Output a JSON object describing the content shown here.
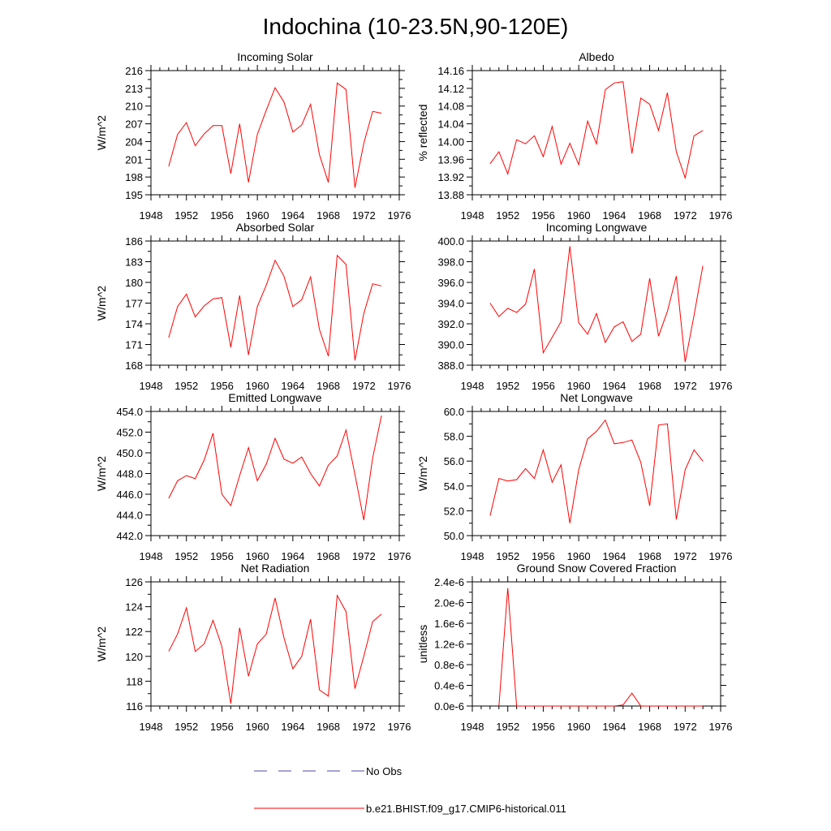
{
  "figure": {
    "title": "Indochina (10-23.5N,90-120E)"
  },
  "colors": {
    "model": "#ff0000",
    "obs": "#4a4aa8",
    "axis": "#000000"
  },
  "legend": {
    "items": [
      {
        "label": "No Obs",
        "style": "dashed",
        "color": "#4a4aa8"
      },
      {
        "label": "b.e21.BHIST.f09_g17.CMIP6-historical.011",
        "style": "solid",
        "color": "#ff0000"
      }
    ]
  },
  "chart_data": [
    {
      "type": "line",
      "title": "Incoming Solar",
      "ylabel": "W/m^2",
      "xlim": [
        1948,
        1976
      ],
      "xticks": [
        "1948",
        "1952",
        "1956",
        "1960",
        "1964",
        "1968",
        "1972",
        "1976"
      ],
      "ylim": [
        195,
        216
      ],
      "yticks": [
        "195",
        "198",
        "201",
        "204",
        "207",
        "210",
        "213",
        "216"
      ],
      "series": [
        {
          "x": [
            1950,
            1951,
            1952,
            1953,
            1954,
            1955,
            1956,
            1957,
            1958,
            1959,
            1960,
            1961,
            1962,
            1963,
            1964,
            1965,
            1966,
            1967,
            1968,
            1969,
            1970,
            1971,
            1972,
            1973,
            1974
          ],
          "values": [
            199.8,
            205.2,
            207.2,
            203.3,
            205.3,
            206.7,
            206.7,
            198.6,
            207.0,
            197.1,
            205.2,
            209.3,
            213.1,
            210.7,
            205.6,
            206.8,
            210.3,
            201.8,
            197.1,
            213.9,
            212.8,
            196.2,
            203.7,
            209.1,
            208.8
          ]
        }
      ]
    },
    {
      "type": "line",
      "title": "Albedo",
      "ylabel": "% reflected",
      "xlim": [
        1948,
        1976
      ],
      "xticks": [
        "1948",
        "1952",
        "1956",
        "1960",
        "1964",
        "1968",
        "1972",
        "1976"
      ],
      "ylim": [
        13.88,
        14.16
      ],
      "yticks": [
        "13.88",
        "13.92",
        "13.96",
        "14.00",
        "14.04",
        "14.08",
        "14.12",
        "14.16"
      ],
      "series": [
        {
          "x": [
            1950,
            1951,
            1952,
            1953,
            1954,
            1955,
            1956,
            1957,
            1958,
            1959,
            1960,
            1961,
            1962,
            1963,
            1964,
            1965,
            1966,
            1967,
            1968,
            1969,
            1970,
            1971,
            1972,
            1973,
            1974
          ],
          "values": [
            13.95,
            13.977,
            13.927,
            14.004,
            13.995,
            14.013,
            13.966,
            14.034,
            13.949,
            13.996,
            13.948,
            14.046,
            13.995,
            14.117,
            14.132,
            14.135,
            13.973,
            14.098,
            14.084,
            14.025,
            14.11,
            13.977,
            13.918,
            14.013,
            14.025
          ]
        }
      ]
    },
    {
      "type": "line",
      "title": "Absorbed Solar",
      "ylabel": "W/m^2",
      "xlim": [
        1948,
        1976
      ],
      "xticks": [
        "1948",
        "1952",
        "1956",
        "1960",
        "1964",
        "1968",
        "1972",
        "1976"
      ],
      "ylim": [
        168,
        186
      ],
      "yticks": [
        "168",
        "171",
        "174",
        "177",
        "180",
        "183",
        "186"
      ],
      "series": [
        {
          "x": [
            1950,
            1951,
            1952,
            1953,
            1954,
            1955,
            1956,
            1957,
            1958,
            1959,
            1960,
            1961,
            1962,
            1963,
            1964,
            1965,
            1966,
            1967,
            1968,
            1969,
            1970,
            1971,
            1972,
            1973,
            1974
          ],
          "values": [
            172.0,
            176.5,
            178.3,
            175.0,
            176.6,
            177.6,
            177.8,
            170.6,
            178.1,
            169.5,
            176.5,
            179.6,
            183.2,
            180.9,
            176.5,
            177.5,
            180.8,
            173.2,
            169.3,
            183.9,
            182.6,
            168.7,
            175.5,
            179.8,
            179.5
          ]
        }
      ]
    },
    {
      "type": "line",
      "title": "Incoming Longwave",
      "ylabel": "",
      "xlim": [
        1948,
        1976
      ],
      "xticks": [
        "1948",
        "1952",
        "1956",
        "1960",
        "1964",
        "1968",
        "1972",
        "1976"
      ],
      "ylim": [
        388,
        400
      ],
      "yticks": [
        "388.0",
        "390.0",
        "392.0",
        "394.0",
        "396.0",
        "398.0",
        "400.0"
      ],
      "series": [
        {
          "x": [
            1950,
            1951,
            1952,
            1953,
            1954,
            1955,
            1956,
            1957,
            1958,
            1959,
            1960,
            1961,
            1962,
            1963,
            1964,
            1965,
            1966,
            1967,
            1968,
            1969,
            1970,
            1971,
            1972,
            1973,
            1974
          ],
          "values": [
            394.0,
            392.7,
            393.5,
            393.1,
            393.9,
            397.3,
            389.2,
            390.7,
            392.2,
            399.5,
            392.1,
            391.0,
            393.0,
            390.2,
            391.7,
            392.2,
            390.3,
            391.0,
            396.4,
            390.8,
            393.2,
            396.6,
            388.3,
            392.8,
            397.6
          ]
        }
      ]
    },
    {
      "type": "line",
      "title": "Emitted Longwave",
      "ylabel": "W/m^2",
      "xlim": [
        1948,
        1976
      ],
      "xticks": [
        "1948",
        "1952",
        "1956",
        "1960",
        "1964",
        "1968",
        "1972",
        "1976"
      ],
      "ylim": [
        442,
        454
      ],
      "yticks": [
        "442.0",
        "444.0",
        "446.0",
        "448.0",
        "450.0",
        "452.0",
        "454.0"
      ],
      "series": [
        {
          "x": [
            1950,
            1951,
            1952,
            1953,
            1954,
            1955,
            1956,
            1957,
            1958,
            1959,
            1960,
            1961,
            1962,
            1963,
            1964,
            1965,
            1966,
            1967,
            1968,
            1969,
            1970,
            1971,
            1972,
            1973,
            1974
          ],
          "values": [
            445.6,
            447.3,
            447.8,
            447.5,
            449.3,
            451.9,
            446.0,
            444.9,
            447.8,
            450.5,
            447.3,
            448.9,
            451.4,
            449.4,
            449.0,
            449.6,
            448.0,
            446.8,
            448.8,
            449.7,
            452.2,
            447.9,
            443.5,
            449.5,
            453.6
          ]
        }
      ]
    },
    {
      "type": "line",
      "title": "Net Longwave",
      "ylabel": "W/m^2",
      "xlim": [
        1948,
        1976
      ],
      "xticks": [
        "1948",
        "1952",
        "1956",
        "1960",
        "1964",
        "1968",
        "1972",
        "1976"
      ],
      "ylim": [
        50,
        60
      ],
      "yticks": [
        "50.0",
        "52.0",
        "54.0",
        "56.0",
        "58.0",
        "60.0"
      ],
      "series": [
        {
          "x": [
            1950,
            1951,
            1952,
            1953,
            1954,
            1955,
            1956,
            1957,
            1958,
            1959,
            1960,
            1961,
            1962,
            1963,
            1964,
            1965,
            1966,
            1967,
            1968,
            1969,
            1970,
            1971,
            1972,
            1973,
            1974
          ],
          "values": [
            51.6,
            54.6,
            54.4,
            54.5,
            55.4,
            54.6,
            56.9,
            54.3,
            55.7,
            51.0,
            55.3,
            57.8,
            58.4,
            59.3,
            57.4,
            57.5,
            57.7,
            55.9,
            52.4,
            58.9,
            59.0,
            51.3,
            55.3,
            56.9,
            56.0
          ]
        }
      ]
    },
    {
      "type": "line",
      "title": "Net Radiation",
      "ylabel": "W/m^2",
      "xlim": [
        1948,
        1976
      ],
      "xticks": [
        "1948",
        "1952",
        "1956",
        "1960",
        "1964",
        "1968",
        "1972",
        "1976"
      ],
      "ylim": [
        116,
        126
      ],
      "yticks": [
        "116",
        "118",
        "120",
        "122",
        "124",
        "126"
      ],
      "series": [
        {
          "x": [
            1950,
            1951,
            1952,
            1953,
            1954,
            1955,
            1956,
            1957,
            1958,
            1959,
            1960,
            1961,
            1962,
            1963,
            1964,
            1965,
            1966,
            1967,
            1968,
            1969,
            1970,
            1971,
            1972,
            1973,
            1974
          ],
          "values": [
            120.4,
            121.8,
            123.9,
            120.4,
            121.0,
            122.9,
            120.8,
            116.2,
            122.3,
            118.4,
            121.0,
            121.8,
            124.7,
            121.5,
            119.0,
            120.0,
            123.0,
            117.3,
            116.8,
            124.9,
            123.6,
            117.4,
            120.0,
            122.8,
            123.4
          ]
        }
      ]
    },
    {
      "type": "line",
      "title": "Ground Snow Covered Fraction",
      "ylabel": "unitless",
      "xlim": [
        1948,
        1976
      ],
      "xticks": [
        "1948",
        "1952",
        "1956",
        "1960",
        "1964",
        "1968",
        "1972",
        "1976"
      ],
      "ylim": [
        0,
        2.4e-06
      ],
      "yticks": [
        "0.0e-6",
        "0.4e-6",
        "0.8e-6",
        "1.2e-6",
        "1.6e-6",
        "2.0e-6",
        "2.4e-6"
      ],
      "series": [
        {
          "x": [
            1951,
            1952,
            1953,
            1954,
            1955,
            1956,
            1957,
            1958,
            1959,
            1960,
            1961,
            1962,
            1963,
            1964,
            1965,
            1966,
            1967,
            1968,
            1969,
            1970,
            1971,
            1972,
            1973,
            1974
          ],
          "values": [
            0,
            2.28e-06,
            0,
            0,
            0,
            0,
            0,
            0,
            0,
            0,
            0,
            0,
            0,
            0,
            2e-08,
            2.5e-07,
            0,
            0,
            0,
            0,
            0,
            0,
            0,
            0
          ]
        }
      ]
    }
  ]
}
